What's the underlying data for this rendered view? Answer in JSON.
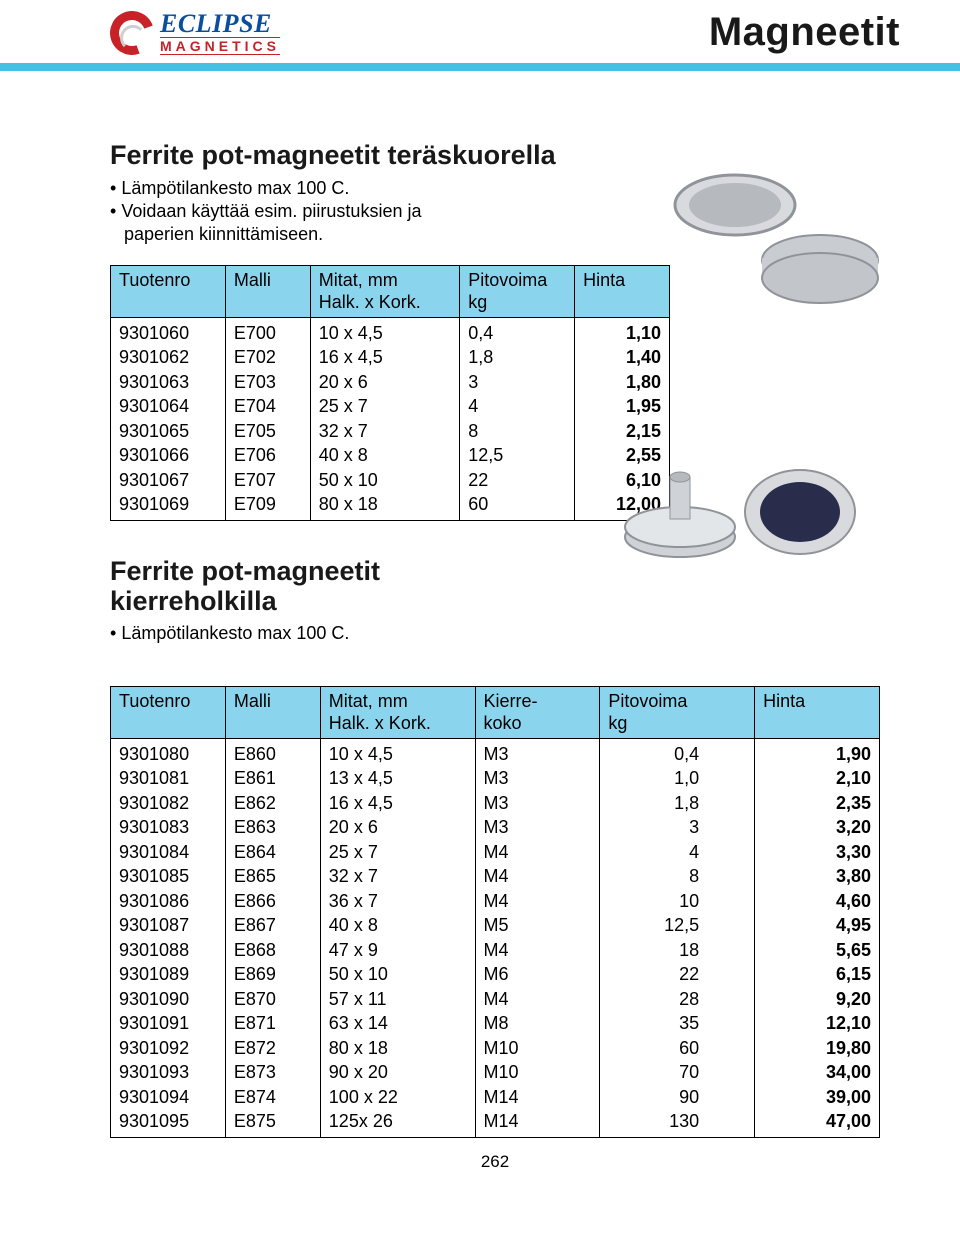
{
  "page_title": "Magneetit",
  "logo": {
    "name": "ECLIPSE",
    "sub": "MAGNETICS"
  },
  "section1": {
    "heading": "Ferrite pot-magneetit teräskuorella",
    "bullets": [
      "Lämpötilankesto max 100 C.",
      "Voidaan käyttää esim. piirustuksien ja",
      "paperien kiinnittämiseen."
    ],
    "columns": {
      "c0": "Tuotenro",
      "c1": "Malli",
      "c2": "Mitat, mm",
      "c2b": "Halk. x Kork.",
      "c3": "Pitovoima",
      "c3b": "kg",
      "c4": "Hinta"
    },
    "rows": [
      {
        "id": "9301060",
        "model": "E700",
        "dim": "10 x 4,5",
        "force": "0,4",
        "price": "1,10"
      },
      {
        "id": "9301062",
        "model": "E702",
        "dim": "16 x 4,5",
        "force": "1,8",
        "price": "1,40"
      },
      {
        "id": "9301063",
        "model": "E703",
        "dim": "20 x 6",
        "force": "3",
        "price": "1,80"
      },
      {
        "id": "9301064",
        "model": "E704",
        "dim": "25 x 7",
        "force": "4",
        "price": "1,95"
      },
      {
        "id": "9301065",
        "model": "E705",
        "dim": "32 x 7",
        "force": "8",
        "price": "2,15"
      },
      {
        "id": "9301066",
        "model": "E706",
        "dim": "40 x 8",
        "force": "12,5",
        "price": "2,55"
      },
      {
        "id": "9301067",
        "model": "E707",
        "dim": "50 x 10",
        "force": "22",
        "price": "6,10"
      },
      {
        "id": "9301069",
        "model": "E709",
        "dim": "80 x 18",
        "force": "60",
        "price": "12,00"
      }
    ]
  },
  "section2": {
    "heading1": "Ferrite pot-magneetit",
    "heading2": "kierreholkilla",
    "bullets": [
      "Lämpötilankesto max 100 C."
    ],
    "columns": {
      "c0": "Tuotenro",
      "c1": "Malli",
      "c2": "Mitat, mm",
      "c2b": "Halk. x Kork.",
      "c3": "Kierre-",
      "c3b": "koko",
      "c4": "Pitovoima",
      "c4b": "kg",
      "c5": "Hinta"
    },
    "rows": [
      {
        "id": "9301080",
        "model": "E860",
        "dim": "10 x 4,5",
        "thread": "M3",
        "force": "0,4",
        "price": "1,90"
      },
      {
        "id": "9301081",
        "model": "E861",
        "dim": "13 x 4,5",
        "thread": "M3",
        "force": "1,0",
        "price": "2,10"
      },
      {
        "id": "9301082",
        "model": "E862",
        "dim": "16 x 4,5",
        "thread": "M3",
        "force": "1,8",
        "price": "2,35"
      },
      {
        "id": "9301083",
        "model": "E863",
        "dim": "20 x 6",
        "thread": "M3",
        "force": "3",
        "price": "3,20"
      },
      {
        "id": "9301084",
        "model": "E864",
        "dim": "25 x 7",
        "thread": "M4",
        "force": "4",
        "price": "3,30"
      },
      {
        "id": "9301085",
        "model": "E865",
        "dim": "32 x 7",
        "thread": "M4",
        "force": "8",
        "price": "3,80"
      },
      {
        "id": "9301086",
        "model": "E866",
        "dim": "36 x 7",
        "thread": "M4",
        "force": "10",
        "price": "4,60"
      },
      {
        "id": "9301087",
        "model": "E867",
        "dim": "40 x 8",
        "thread": "M5",
        "force": "12,5",
        "price": "4,95"
      },
      {
        "id": "9301088",
        "model": "E868",
        "dim": "47 x 9",
        "thread": "M4",
        "force": "18",
        "price": "5,65"
      },
      {
        "id": "9301089",
        "model": "E869",
        "dim": "50 x 10",
        "thread": "M6",
        "force": "22",
        "price": "6,15"
      },
      {
        "id": "9301090",
        "model": "E870",
        "dim": "57 x 11",
        "thread": "M4",
        "force": "28",
        "price": "9,20"
      },
      {
        "id": "9301091",
        "model": "E871",
        "dim": "63 x 14",
        "thread": "M8",
        "force": "35",
        "price": "12,10"
      },
      {
        "id": "9301092",
        "model": "E872",
        "dim": "80 x 18",
        "thread": "M10",
        "force": "60",
        "price": "19,80"
      },
      {
        "id": "9301093",
        "model": "E873",
        "dim": "90 x 20",
        "thread": "M10",
        "force": "70",
        "price": "34,00"
      },
      {
        "id": "9301094",
        "model": "E874",
        "dim": "100 x 22",
        "thread": "M14",
        "force": "90",
        "price": "39,00"
      },
      {
        "id": "9301095",
        "model": "E875",
        "dim": "125x 26",
        "thread": "M14",
        "force": "130",
        "price": "47,00"
      }
    ]
  },
  "page_number": "262",
  "colors": {
    "rule": "#47bde7",
    "header_bg": "#8bd4ed",
    "brand_red": "#c62228",
    "brand_blue": "#0a4ea0"
  }
}
